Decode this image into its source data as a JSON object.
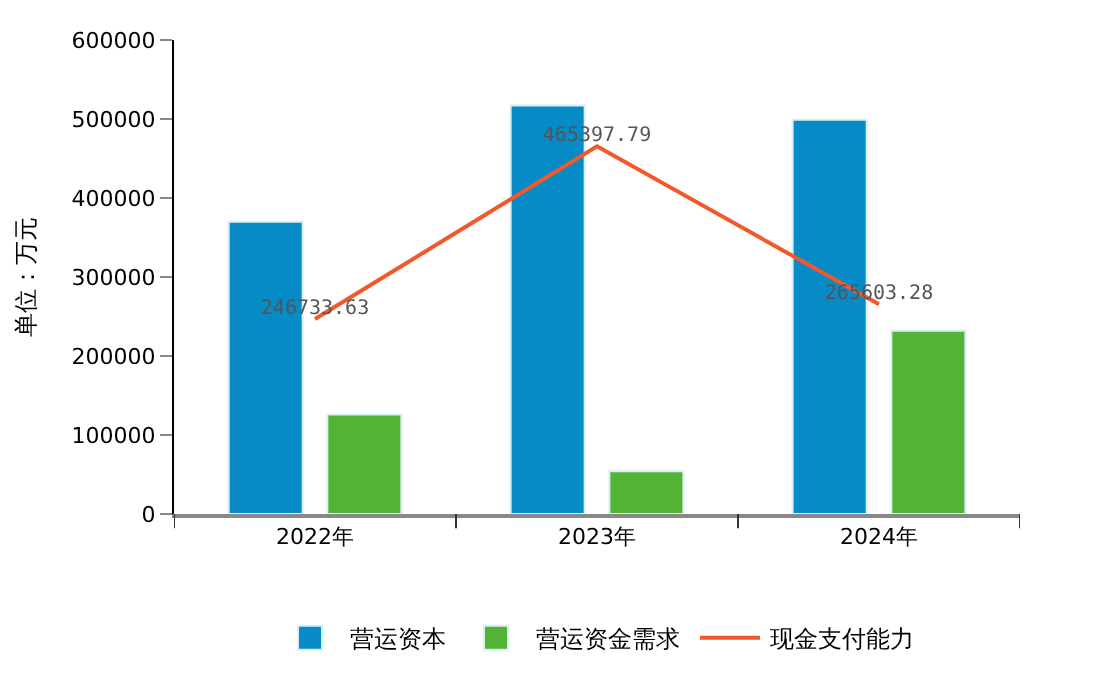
{
  "chart_data": {
    "type": "bar",
    "ylabel": "单位：万元",
    "categories": [
      "2022年",
      "2023年",
      "2024年"
    ],
    "ylim": [
      0,
      600000
    ],
    "yticks": [
      0,
      100000,
      200000,
      300000,
      400000,
      500000,
      600000
    ],
    "legend": "bottom",
    "series": [
      {
        "name": "营运资本",
        "color": "#068bc6",
        "values": [
          370000,
          517000,
          499000
        ]
      },
      {
        "name": "营运资金需求",
        "color": "#52b334",
        "values": [
          126000,
          54000,
          232000
        ]
      },
      {
        "name": "现金支付能力",
        "color": "#f2582a",
        "type": "line",
        "values": [
          246733.63,
          465397.79,
          265603.28
        ],
        "value_labels": [
          "246733.63",
          "465397.79",
          "265603.28"
        ]
      }
    ]
  }
}
